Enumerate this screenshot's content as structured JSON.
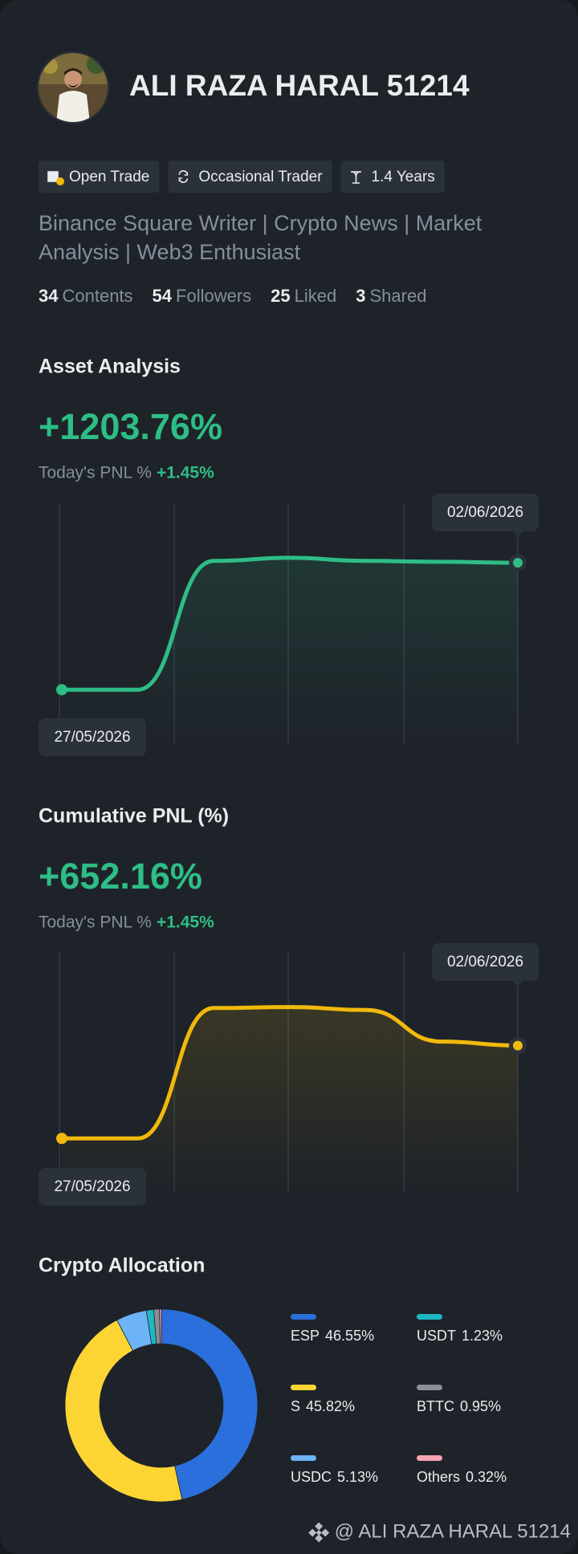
{
  "profile": {
    "name": "ALI RAZA HARAL 51214",
    "badges": [
      "Open Trade",
      "Occasional Trader",
      "1.4 Years"
    ],
    "bio": "Binance Square Writer | Crypto News | Market Analysis | Web3 Enthusiast",
    "stats": [
      {
        "count": "34",
        "label": "Contents"
      },
      {
        "count": "54",
        "label": "Followers"
      },
      {
        "count": "25",
        "label": "Liked"
      },
      {
        "count": "3",
        "label": "Shared"
      }
    ]
  },
  "chart_data": [
    {
      "type": "line",
      "title": "Asset Analysis",
      "headline": "+1203.76%",
      "pnl_label": "Today's PNL %",
      "pnl_value": "+1.45%",
      "categories": [
        "27/05/2026",
        null,
        null,
        null,
        null,
        null,
        "02/06/2026"
      ],
      "series": [
        {
          "color": "#2ebd85",
          "values": [
            0,
            0,
            1222,
            1251,
            1222,
            1213,
            1203.76
          ]
        }
      ],
      "ylim": [
        -508,
        1768
      ]
    },
    {
      "type": "line",
      "title": "Cumulative PNL (%)",
      "headline": "+652.16%",
      "pnl_label": "Today's PNL %",
      "pnl_value": "+1.45%",
      "categories": [
        "27/05/2026",
        null,
        null,
        null,
        null,
        null,
        "02/06/2026"
      ],
      "series": [
        {
          "color": "#f0b90b",
          "values": [
            0,
            0,
            916,
            923,
            902,
            680,
            652.16
          ]
        }
      ],
      "ylim": [
        -382,
        1304
      ]
    },
    {
      "type": "donut",
      "title": "Crypto Allocation",
      "categories": [
        "ESP",
        "S",
        "USDC",
        "USDT",
        "BTTC",
        "Others"
      ],
      "values": [
        46.55,
        45.82,
        5.13,
        1.23,
        0.95,
        0.32
      ],
      "value_labels": [
        "46.55%",
        "45.82%",
        "5.13%",
        "1.23%",
        "0.95%",
        "0.32%"
      ],
      "colors": [
        "#2a6fdb",
        "#fcd535",
        "#6cb4f7",
        "#1eb8c4",
        "#8a8f98",
        "#f6a4ae"
      ]
    }
  ],
  "footer": {
    "text": "@ ALI RAZA HARAL 51214"
  }
}
